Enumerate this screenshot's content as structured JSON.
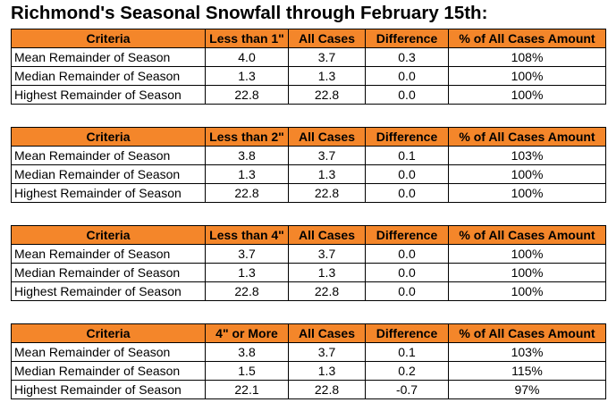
{
  "title": "Richmond's Seasonal Snowfall through February 15th:",
  "colors": {
    "header_fill": "#f4862a",
    "border": "#000000"
  },
  "tables": [
    {
      "headers": [
        "Criteria",
        "Less than 1\"",
        "All Cases",
        "Difference",
        "% of All Cases Amount"
      ],
      "rows": [
        [
          "Mean Remainder of Season",
          "4.0",
          "3.7",
          "0.3",
          "108%"
        ],
        [
          "Median Remainder of Season",
          "1.3",
          "1.3",
          "0.0",
          "100%"
        ],
        [
          "Highest Remainder of Season",
          "22.8",
          "22.8",
          "0.0",
          "100%"
        ]
      ]
    },
    {
      "headers": [
        "Criteria",
        "Less than 2\"",
        "All Cases",
        "Difference",
        "% of All Cases Amount"
      ],
      "rows": [
        [
          "Mean Remainder of Season",
          "3.8",
          "3.7",
          "0.1",
          "103%"
        ],
        [
          "Median Remainder of Season",
          "1.3",
          "1.3",
          "0.0",
          "100%"
        ],
        [
          "Highest Remainder of Season",
          "22.8",
          "22.8",
          "0.0",
          "100%"
        ]
      ]
    },
    {
      "headers": [
        "Criteria",
        "Less than 4\"",
        "All Cases",
        "Difference",
        "% of All Cases Amount"
      ],
      "rows": [
        [
          "Mean Remainder of Season",
          "3.7",
          "3.7",
          "0.0",
          "100%"
        ],
        [
          "Median Remainder of Season",
          "1.3",
          "1.3",
          "0.0",
          "100%"
        ],
        [
          "Highest Remainder of Season",
          "22.8",
          "22.8",
          "0.0",
          "100%"
        ]
      ]
    },
    {
      "headers": [
        "Criteria",
        "4\" or More",
        "All Cases",
        "Difference",
        "% of All Cases Amount"
      ],
      "rows": [
        [
          "Mean Remainder of Season",
          "3.8",
          "3.7",
          "0.1",
          "103%"
        ],
        [
          "Median Remainder of Season",
          "1.5",
          "1.3",
          "0.2",
          "115%"
        ],
        [
          "Highest Remainder of Season",
          "22.1",
          "22.8",
          "-0.7",
          "97%"
        ]
      ]
    }
  ]
}
